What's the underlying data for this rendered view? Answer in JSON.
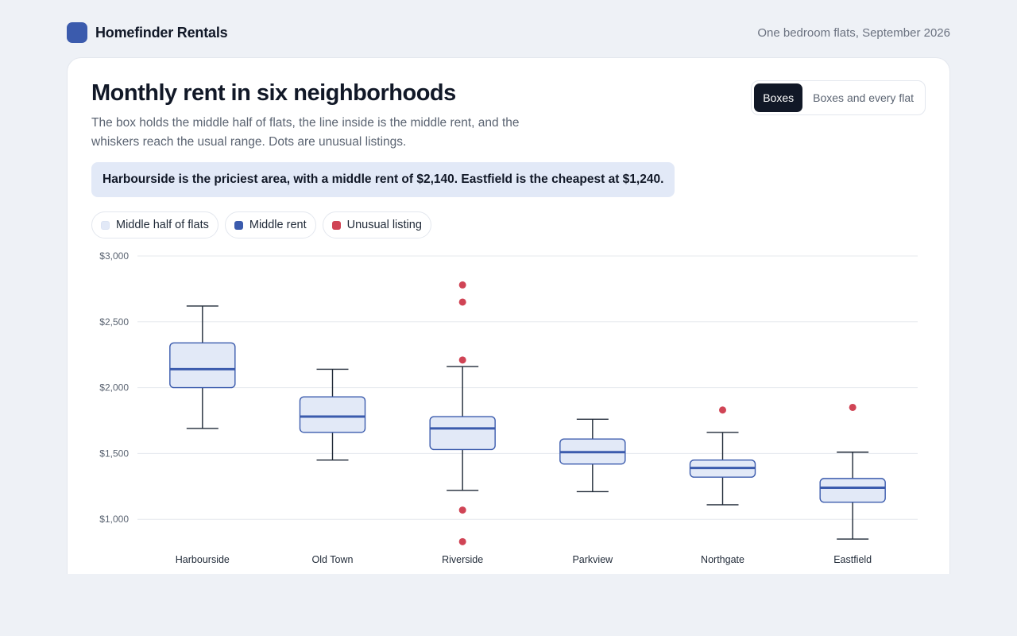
{
  "app": {
    "brand": "Homefinder Rentals",
    "subtitle": "One bedroom flats, September 2026",
    "accent_color": "#3b5bad"
  },
  "card": {
    "title": "Monthly rent in six neighborhoods",
    "description": "The box holds the middle half of flats, the line inside is the middle rent, and the whiskers reach the usual range. Dots are unusual listings.",
    "callout": "Harbourside is the priciest area, with a middle rent of $2,140. Eastfield is the cheapest at $1,240."
  },
  "view_toggle": {
    "options": [
      "Boxes",
      "Boxes and every flat"
    ],
    "selected": "Boxes"
  },
  "legend": {
    "items": [
      {
        "label": "Middle half of flats",
        "color": "#e2e9f7"
      },
      {
        "label": "Middle rent",
        "color": "#3b5bad"
      },
      {
        "label": "Unusual listing",
        "color": "#d04455"
      }
    ]
  },
  "chart_data": {
    "type": "boxplot",
    "title": "",
    "xlabel": "",
    "ylabel": "",
    "ylim": [
      850,
      3000
    ],
    "yticks": [
      1000,
      1500,
      2000,
      2500,
      3000
    ],
    "ytick_labels": [
      "$1,000",
      "$1,500",
      "$2,000",
      "$2,500",
      "$3,000"
    ],
    "grid": true,
    "colors": {
      "box_fill": "#e2e9f7",
      "box_stroke": "#3b5bad",
      "median": "#3b5bad",
      "whisker": "#1f2937",
      "outlier": "#d04455"
    },
    "categories": [
      "Harbourside",
      "Old Town",
      "Riverside",
      "Parkview",
      "Northgate",
      "Eastfield"
    ],
    "boxes": [
      {
        "name": "Harbourside",
        "whisker_low": 1690,
        "q1": 2000,
        "median": 2140,
        "q3": 2340,
        "whisker_high": 2620,
        "outliers": []
      },
      {
        "name": "Old Town",
        "whisker_low": 1450,
        "q1": 1660,
        "median": 1780,
        "q3": 1930,
        "whisker_high": 2140,
        "outliers": []
      },
      {
        "name": "Riverside",
        "whisker_low": 1220,
        "q1": 1530,
        "median": 1690,
        "q3": 1780,
        "whisker_high": 2160,
        "outliers": [
          830,
          1070,
          2210,
          2650,
          2780
        ]
      },
      {
        "name": "Parkview",
        "whisker_low": 1210,
        "q1": 1420,
        "median": 1510,
        "q3": 1610,
        "whisker_high": 1760,
        "outliers": []
      },
      {
        "name": "Northgate",
        "whisker_low": 1110,
        "q1": 1320,
        "median": 1390,
        "q3": 1450,
        "whisker_high": 1660,
        "outliers": [
          1830
        ]
      },
      {
        "name": "Eastfield",
        "whisker_low": 850,
        "q1": 1130,
        "median": 1240,
        "q3": 1310,
        "whisker_high": 1510,
        "outliers": [
          1850
        ]
      }
    ]
  }
}
